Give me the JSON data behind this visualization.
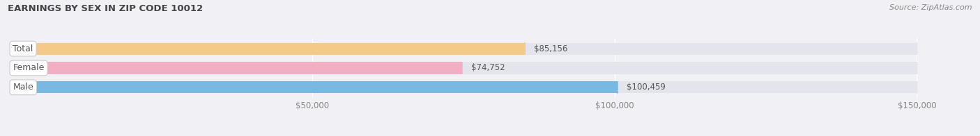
{
  "title": "EARNINGS BY SEX IN ZIP CODE 10012",
  "source": "Source: ZipAtlas.com",
  "categories": [
    "Male",
    "Female",
    "Total"
  ],
  "values": [
    100459,
    74752,
    85156
  ],
  "bar_colors": [
    "#79b8e0",
    "#f4aec4",
    "#f5c98a"
  ],
  "bar_bg_color": "#e4e4ec",
  "label_texts": [
    "$100,459",
    "$74,752",
    "$85,156"
  ],
  "xmin": 0,
  "xmax": 150000,
  "xlim_max": 158000,
  "xticks": [
    50000,
    100000,
    150000
  ],
  "xtick_labels": [
    "$50,000",
    "$100,000",
    "$150,000"
  ],
  "title_fontsize": 9.5,
  "source_fontsize": 8,
  "tick_fontsize": 8.5,
  "bar_label_fontsize": 8.5,
  "cat_label_fontsize": 9,
  "bg_color": "#f0f0f5",
  "bar_height": 0.62,
  "title_color": "#444444",
  "source_color": "#888888",
  "tick_color": "#888888",
  "bar_label_color": "#555555",
  "cat_label_color": "#555555",
  "grid_color": "#ffffff",
  "badge_color": "#ffffff",
  "badge_edge_color": "#cccccc"
}
